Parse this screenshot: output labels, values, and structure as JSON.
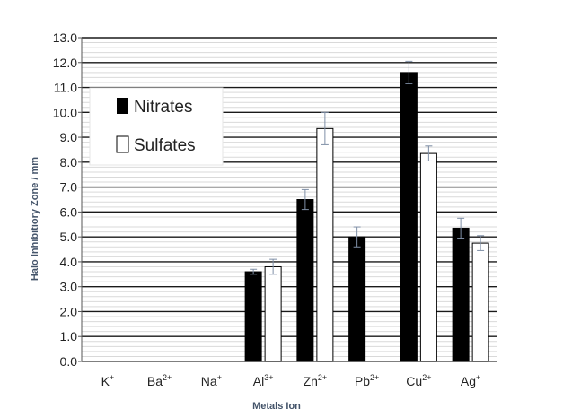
{
  "chart_data": {
    "type": "bar",
    "categories": [
      "K",
      "Ba",
      "Na",
      "Al",
      "Zn",
      "Pb",
      "Cu",
      "Ag"
    ],
    "category_charges": [
      "+",
      "2+",
      "+",
      "3+",
      "2+",
      "2+",
      "2+",
      "+"
    ],
    "series": [
      {
        "name": "Nitrates",
        "values": [
          0,
          0,
          0,
          3.6,
          6.5,
          5.0,
          11.6,
          5.35
        ],
        "errors": [
          0,
          0,
          0,
          0.1,
          0.4,
          0.4,
          0.45,
          0.4
        ],
        "color": "#000000"
      },
      {
        "name": "Sulfates",
        "values": [
          0,
          0,
          0,
          3.8,
          9.35,
          0,
          8.35,
          4.75
        ],
        "errors": [
          0,
          0,
          0,
          0.3,
          0.65,
          0,
          0.3,
          0.3
        ],
        "color": "#ffffff"
      }
    ],
    "ylabel": "Halo Inhibitiory Zone / mm",
    "xlabel": "Metals Ion",
    "ylim": [
      0,
      13
    ],
    "ytick_step": 1,
    "grid": true,
    "legend": "top-left",
    "error_bar_color": "#7f8fa6"
  }
}
